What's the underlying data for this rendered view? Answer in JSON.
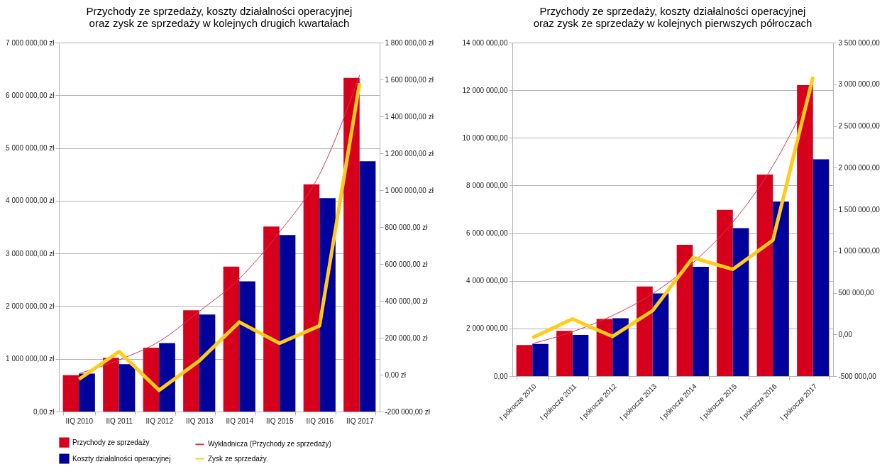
{
  "chart_data": [
    {
      "type": "bar",
      "title": [
        "Przychody ze sprzedaży, koszty działalności operacyjnej",
        "oraz zysk ze sprzedaży w kolejnych drugich kwartałach"
      ],
      "categories": [
        "IIQ 2010",
        "IIQ 2011",
        "IIQ 2012",
        "IIQ 2013",
        "IIQ 2014",
        "IIQ 2015",
        "IIQ 2016",
        "IIQ 2017"
      ],
      "series": [
        {
          "name": "Przychody ze sprzedaży",
          "color": "#d6001c",
          "values": [
            690000,
            1020000,
            1210000,
            1920000,
            2750000,
            3510000,
            4310000,
            6330000
          ]
        },
        {
          "name": "Wykładnicza (Przychody ze sprzedaży)",
          "type": "line",
          "color": "#e0304a",
          "values": [
            720000,
            980000,
            1330000,
            1900000,
            2520000,
            3400000,
            4500000,
            6380000
          ]
        },
        {
          "name": "Koszty działalności operacyjnej",
          "color": "#00009a",
          "values": [
            720000,
            900000,
            1300000,
            1840000,
            2470000,
            3350000,
            4050000,
            4750000
          ]
        },
        {
          "name": "Zysk ze sprzedaży",
          "type": "line",
          "axis": "y2",
          "color": "#ffcc1a",
          "values": [
            -25000,
            125000,
            -85000,
            75000,
            285000,
            170000,
            265000,
            1580000
          ]
        }
      ],
      "ylim": [
        0,
        7000000
      ],
      "yticks": [
        {
          "value": 0,
          "label": "0,00 zł"
        },
        {
          "value": 1000000,
          "label": "1 000 000,00 zł"
        },
        {
          "value": 2000000,
          "label": "2 000 000,00 zł"
        },
        {
          "value": 3000000,
          "label": "3 000 000,00 zł"
        },
        {
          "value": 4000000,
          "label": "4 000 000,00 zł"
        },
        {
          "value": 5000000,
          "label": "5 000 000,00 zł"
        },
        {
          "value": 6000000,
          "label": "6 000 000,00 zł"
        },
        {
          "value": 7000000,
          "label": "7 000 000,00 zł"
        }
      ],
      "y2lim": [
        -200000,
        1800000
      ],
      "y2ticks": [
        {
          "value": -200000,
          "label": "-200 000,00 zł"
        },
        {
          "value": 0,
          "label": "0,00 zł"
        },
        {
          "value": 200000,
          "label": "200 000,00 zł"
        },
        {
          "value": 400000,
          "label": "400 000,00 zł"
        },
        {
          "value": 600000,
          "label": "600 000,00 zł"
        },
        {
          "value": 800000,
          "label": "800 000,00 zł"
        },
        {
          "value": 1000000,
          "label": "1 000 000,00 zł"
        },
        {
          "value": 1200000,
          "label": "1 200 000,00 zł"
        },
        {
          "value": 1400000,
          "label": "1 400 000,00 zł"
        },
        {
          "value": 1600000,
          "label": "1 600 000,00 zł"
        },
        {
          "value": 1800000,
          "label": "1 800 000,00 zł"
        }
      ],
      "grid": "y",
      "legend": "bottom"
    },
    {
      "type": "bar",
      "title": [
        "Przychody ze sprzedaży, koszty działalności operacyjnej",
        "oraz zysk ze sprzedaży w kolejnych pierwszych półroczach"
      ],
      "categories": [
        "I półrocze 2010",
        "I półrocze 2011",
        "I półrocze 2012",
        "I półrocze 2013",
        "I półrocze 2014",
        "I półrocze 2015",
        "I półrocze 2016",
        "I półrocze 2017"
      ],
      "series": [
        {
          "name": "Przychody ze sprzedaży",
          "color": "#d6001c",
          "values": [
            1300000,
            1900000,
            2400000,
            3760000,
            5510000,
            6980000,
            8460000,
            12210000
          ]
        },
        {
          "name": "Wykładnicza (Przychody ze sprzedaży)",
          "type": "line",
          "color": "#e0304a",
          "values": [
            1360000,
            1860000,
            2540000,
            3460000,
            4750000,
            6460000,
            8830000,
            12050000
          ]
        },
        {
          "name": "Koszty działalności operacyjnej",
          "color": "#00009a",
          "values": [
            1350000,
            1730000,
            2430000,
            3470000,
            4590000,
            6210000,
            7330000,
            9100000
          ]
        },
        {
          "name": "Zysk ze sprzedaży",
          "type": "line",
          "axis": "y2",
          "color": "#ffcc1a",
          "values": [
            -40000,
            185000,
            -25000,
            285000,
            920000,
            780000,
            1130000,
            3090000
          ]
        }
      ],
      "ylim": [
        0,
        14000000
      ],
      "yticks": [
        {
          "value": 0,
          "label": "0,00"
        },
        {
          "value": 2000000,
          "label": "2 000 000,00"
        },
        {
          "value": 4000000,
          "label": "4 000 000,00"
        },
        {
          "value": 6000000,
          "label": "6 000 000,00"
        },
        {
          "value": 8000000,
          "label": "8 000 000,00"
        },
        {
          "value": 10000000,
          "label": "10 000 000,00"
        },
        {
          "value": 12000000,
          "label": "12 000 000,00"
        },
        {
          "value": 14000000,
          "label": "14 000 000,00"
        }
      ],
      "y2lim": [
        -500000,
        3500000
      ],
      "y2ticks": [
        {
          "value": -500000,
          "label": "-500 000,00"
        },
        {
          "value": 0,
          "label": "0,00"
        },
        {
          "value": 500000,
          "label": "500 000,00"
        },
        {
          "value": 1000000,
          "label": "1 000 000,00"
        },
        {
          "value": 1500000,
          "label": "1 500 000,00"
        },
        {
          "value": 2000000,
          "label": "2 000 000,00"
        },
        {
          "value": 2500000,
          "label": "2 500 000,00"
        },
        {
          "value": 3000000,
          "label": "3 000 000,00"
        },
        {
          "value": 3500000,
          "label": "3 500 000,00"
        }
      ],
      "grid": "y",
      "legend": "bottom"
    }
  ]
}
